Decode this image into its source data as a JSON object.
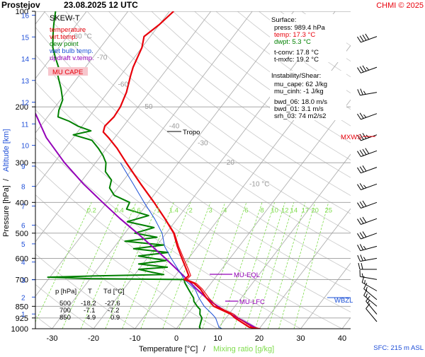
{
  "header": {
    "station": "Prostejov",
    "datetime": "23.08.2025 12 UTC",
    "copyright": "CHMI © 2025"
  },
  "legend": {
    "title": "SKEW-T",
    "items": [
      {
        "label": "temperature",
        "color": "#e8000b"
      },
      {
        "label": "virt.temp.",
        "color": "#e8000b"
      },
      {
        "label": "dew point",
        "color": "#008000"
      },
      {
        "label": "wet bulb temp.",
        "color": "#1a4fd6"
      },
      {
        "label": "updraft v.temp.",
        "color": "#9400b8"
      }
    ],
    "mu_cape_label": "MU CAPE"
  },
  "surface": {
    "title": "Surface:",
    "press": "press: 989.4 hPa",
    "temp": "temp: 17.3 °C",
    "dwpt": "dwpt: 5.3 °C",
    "tconv": "t-conv: 17.8 °C",
    "tmxfc": "t-mxfc: 19.2 °C"
  },
  "instability": {
    "title": "Instability/Shear:",
    "lines": [
      "mu_cape: 62 J/kg",
      "mu_cinh: -1 J/kg",
      "bwd_06: 18.0 m/s",
      "bwd_01: 3.1 m/s",
      "srh_03: 74 m2/s2"
    ]
  },
  "levels_table": {
    "headers": [
      "p [hPa]",
      "T",
      "Td [°C]"
    ],
    "rows": [
      [
        "500",
        "-18.2",
        "-27.6"
      ],
      [
        "700",
        "-7.1",
        "-7.2"
      ],
      [
        "850",
        "4.9",
        "0.9"
      ]
    ]
  },
  "annotations": {
    "tropo": "Tropo",
    "mu_eql": "MU-EQL",
    "mu_lfc": "MU-LFC",
    "mxws": "MXWS",
    "wbzl": "WBZL"
  },
  "axes": {
    "xlabel_temp": "Temperature [°C]",
    "xlabel_sep": "/",
    "xlabel_mix": "Mixing ratio [g/kg]",
    "ylabel_pressure": "Pressure [hPa]",
    "ylabel_sep": "/",
    "ylabel_alt": "Altitude [km]",
    "sfc": "SFC: 215 m ASL"
  },
  "colors": {
    "temperature": "#e8000b",
    "dewpoint": "#008000",
    "wetbulb": "#1a4fd6",
    "updraft": "#9400b8",
    "mixing": "#7fdc4c",
    "altitude": "#1f4fd8",
    "grid": "#b0b0b0",
    "dry_adiabat": "#c8c8c8"
  },
  "chart_data": {
    "type": "line",
    "x_axis": {
      "label": "Temperature [°C]",
      "ticks": [
        -30,
        -20,
        -10,
        0,
        10,
        20,
        30,
        40
      ]
    },
    "y_axis": {
      "label": "Pressure [hPa]",
      "scale": "log",
      "ticks": [
        100,
        200,
        300,
        400,
        500,
        600,
        700,
        850,
        925,
        1000
      ],
      "range": [
        1000,
        100
      ]
    },
    "altitude_ticks_km": [
      1,
      2,
      3,
      4,
      5,
      6,
      7,
      8,
      9,
      10,
      11,
      12,
      13,
      14,
      15,
      16
    ],
    "isotherm_labels": [
      "-80 °C",
      "-70",
      "-60",
      "-50",
      "-40",
      "-30",
      "-20",
      "-10 °C"
    ],
    "mixing_ratio_labels": [
      "0.2",
      "0.4",
      "0.6",
      "1",
      "1.4",
      "2",
      "3",
      "4",
      "6",
      "8",
      "10",
      "12",
      "14",
      "17",
      "20",
      "25"
    ],
    "series": [
      {
        "name": "temperature",
        "points": [
          [
            1000,
            19.8
          ],
          [
            989,
            17.3
          ],
          [
            925,
            12.2
          ],
          [
            900,
            10.5
          ],
          [
            850,
            4.9
          ],
          [
            800,
            1.6
          ],
          [
            750,
            -1.5
          ],
          [
            720,
            -4.0
          ],
          [
            700,
            -7.1
          ],
          [
            680,
            -6.8
          ],
          [
            650,
            -8.5
          ],
          [
            600,
            -11.6
          ],
          [
            550,
            -14.9
          ],
          [
            500,
            -18.2
          ],
          [
            450,
            -23.0
          ],
          [
            400,
            -28.6
          ],
          [
            350,
            -35.2
          ],
          [
            300,
            -42.6
          ],
          [
            270,
            -47.5
          ],
          [
            250,
            -51.5
          ],
          [
            240,
            -53.8
          ],
          [
            230,
            -54.5
          ],
          [
            215,
            -54.0
          ],
          [
            200,
            -54.3
          ],
          [
            180,
            -55.5
          ],
          [
            160,
            -57.5
          ],
          [
            150,
            -58.5
          ],
          [
            130,
            -60.0
          ],
          [
            120,
            -61.5
          ],
          [
            110,
            -60.0
          ],
          [
            100,
            -59.0
          ]
        ]
      },
      {
        "name": "virt.temp.",
        "points": [
          [
            1000,
            20.5
          ],
          [
            989,
            18.0
          ],
          [
            925,
            12.9
          ],
          [
            900,
            11.2
          ],
          [
            850,
            5.6
          ],
          [
            800,
            2.2
          ],
          [
            750,
            -1.0
          ],
          [
            720,
            -3.5
          ],
          [
            700,
            -6.5
          ],
          [
            680,
            -6.3
          ],
          [
            650,
            -8.0
          ],
          [
            600,
            -11.2
          ],
          [
            550,
            -14.6
          ],
          [
            500,
            -18.0
          ],
          [
            450,
            -22.9
          ],
          [
            400,
            -28.5
          ],
          [
            350,
            -35.1
          ],
          [
            300,
            -42.5
          ],
          [
            270,
            -47.5
          ],
          [
            250,
            -51.5
          ],
          [
            240,
            -53.8
          ],
          [
            230,
            -54.5
          ],
          [
            215,
            -54.0
          ],
          [
            200,
            -54.3
          ],
          [
            180,
            -55.5
          ],
          [
            160,
            -57.5
          ],
          [
            150,
            -58.5
          ],
          [
            130,
            -60.0
          ],
          [
            120,
            -61.5
          ],
          [
            110,
            -60.0
          ],
          [
            100,
            -59.0
          ]
        ]
      },
      {
        "name": "dew point",
        "points": [
          [
            1000,
            5.8
          ],
          [
            989,
            5.3
          ],
          [
            960,
            4.8
          ],
          [
            925,
            4.2
          ],
          [
            900,
            3.0
          ],
          [
            870,
            2.2
          ],
          [
            850,
            0.9
          ],
          [
            820,
            -0.8
          ],
          [
            800,
            -1.5
          ],
          [
            760,
            -3.8
          ],
          [
            740,
            -5.0
          ],
          [
            720,
            -6.2
          ],
          [
            700,
            -7.2
          ],
          [
            695,
            -30.0
          ],
          [
            688,
            -40.5
          ],
          [
            682,
            -30.0
          ],
          [
            675,
            -13.0
          ],
          [
            665,
            -16.0
          ],
          [
            650,
            -20.0
          ],
          [
            640,
            -13.5
          ],
          [
            625,
            -21.0
          ],
          [
            610,
            -15.0
          ],
          [
            590,
            -22.5
          ],
          [
            575,
            -16.0
          ],
          [
            560,
            -25.0
          ],
          [
            545,
            -18.5
          ],
          [
            530,
            -28.5
          ],
          [
            515,
            -21.5
          ],
          [
            500,
            -27.6
          ],
          [
            480,
            -24.0
          ],
          [
            460,
            -31.5
          ],
          [
            440,
            -27.5
          ],
          [
            420,
            -34.0
          ],
          [
            400,
            -34.5
          ],
          [
            380,
            -39.5
          ],
          [
            360,
            -42.0
          ],
          [
            340,
            -43.0
          ],
          [
            320,
            -46.0
          ],
          [
            300,
            -47.5
          ],
          [
            285,
            -49.5
          ],
          [
            270,
            -52.0
          ],
          [
            255,
            -55.0
          ],
          [
            245,
            -60.5
          ],
          [
            238,
            -57.0
          ],
          [
            230,
            -61.0
          ],
          [
            222,
            -64.0
          ],
          [
            215,
            -67.5
          ],
          [
            205,
            -68.5
          ],
          [
            190,
            -69.5
          ],
          [
            175,
            -72.0
          ],
          [
            160,
            -75.0
          ],
          [
            150,
            -76.5
          ],
          [
            140,
            -79.0
          ],
          [
            130,
            -81.5
          ],
          [
            120,
            -83.5
          ],
          [
            110,
            -85.5
          ],
          [
            100,
            -87.5
          ]
        ]
      },
      {
        "name": "wet bulb temp.",
        "points": [
          [
            1000,
            11.0
          ],
          [
            989,
            10.0
          ],
          [
            925,
            7.5
          ],
          [
            900,
            6.0
          ],
          [
            850,
            2.6
          ],
          [
            800,
            -0.2
          ],
          [
            750,
            -2.8
          ],
          [
            700,
            -7.1
          ],
          [
            650,
            -10.5
          ],
          [
            600,
            -14.2
          ],
          [
            550,
            -18.0
          ],
          [
            500,
            -21.0
          ],
          [
            450,
            -25.5
          ],
          [
            400,
            -31.0
          ],
          [
            350,
            -37.0
          ],
          [
            300,
            -44.0
          ]
        ]
      },
      {
        "name": "updraft v.temp.",
        "points": [
          [
            1000,
            19.5
          ],
          [
            950,
            15.2
          ],
          [
            900,
            10.5
          ],
          [
            860,
            6.8
          ],
          [
            840,
            5.0
          ],
          [
            800,
            1.6
          ],
          [
            750,
            -2.4
          ],
          [
            700,
            -6.4
          ],
          [
            650,
            -10.8
          ],
          [
            600,
            -15.6
          ],
          [
            550,
            -21.0
          ],
          [
            500,
            -27.0
          ],
          [
            450,
            -33.8
          ],
          [
            400,
            -41.0
          ],
          [
            350,
            -49.0
          ],
          [
            300,
            -57.5
          ],
          [
            250,
            -66.5
          ],
          [
            200,
            -75.5
          ],
          [
            150,
            -85.0
          ],
          [
            130,
            -89.0
          ]
        ]
      }
    ],
    "wind_barbs": [
      {
        "p": 120,
        "dir": 250,
        "spd": 40
      },
      {
        "p": 150,
        "dir": 250,
        "spd": 35
      },
      {
        "p": 180,
        "dir": 260,
        "spd": 25
      },
      {
        "p": 210,
        "dir": 250,
        "spd": 25
      },
      {
        "p": 245,
        "dir": 250,
        "spd": 35
      },
      {
        "p": 275,
        "dir": 250,
        "spd": 40
      },
      {
        "p": 310,
        "dir": 250,
        "spd": 30
      },
      {
        "p": 350,
        "dir": 250,
        "spd": 25
      },
      {
        "p": 400,
        "dir": 250,
        "spd": 30
      },
      {
        "p": 450,
        "dir": 250,
        "spd": 30
      },
      {
        "p": 500,
        "dir": 250,
        "spd": 30
      },
      {
        "p": 550,
        "dir": 255,
        "spd": 25
      },
      {
        "p": 600,
        "dir": 260,
        "spd": 25
      },
      {
        "p": 650,
        "dir": 270,
        "spd": 20
      },
      {
        "p": 700,
        "dir": 280,
        "spd": 15
      },
      {
        "p": 760,
        "dir": 300,
        "spd": 15
      },
      {
        "p": 810,
        "dir": 310,
        "spd": 15
      },
      {
        "p": 850,
        "dir": 310,
        "spd": 15
      },
      {
        "p": 900,
        "dir": 320,
        "spd": 15
      },
      {
        "p": 950,
        "dir": 320,
        "spd": 10
      }
    ]
  }
}
